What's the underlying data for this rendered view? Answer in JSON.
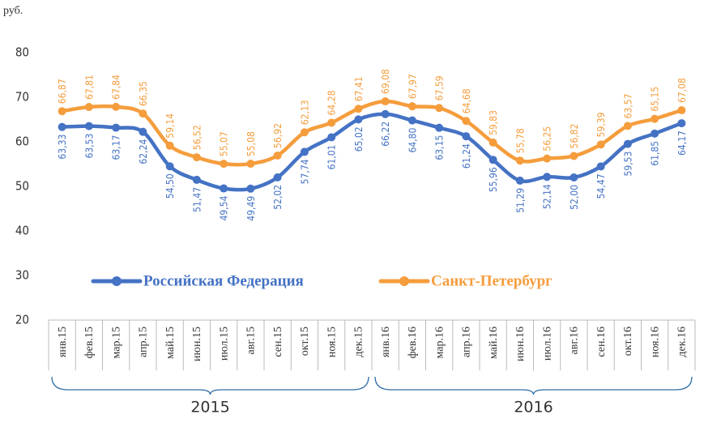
{
  "chart_data": {
    "type": "line",
    "y_unit_label": "руб.",
    "categories": [
      "янв.15",
      "фев.15",
      "мар.15",
      "апр.15",
      "май.15",
      "июн.15",
      "июл.15",
      "авг.15",
      "сен.15",
      "окт.15",
      "ноя.15",
      "дек.15",
      "янв.16",
      "фев.16",
      "мар.16",
      "апр.16",
      "май.16",
      "июн.16",
      "июл.16",
      "авг.16",
      "сен.16",
      "окт.16",
      "ноя.16",
      "дек.16"
    ],
    "year_groups": [
      "2015",
      "2016"
    ],
    "series": [
      {
        "name": "Российская Федерация",
        "color": "#4472c4",
        "values": [
          63.33,
          63.53,
          63.17,
          62.24,
          54.5,
          51.47,
          49.54,
          49.49,
          52.02,
          57.74,
          61.01,
          65.02,
          66.22,
          64.8,
          63.15,
          61.24,
          55.96,
          51.29,
          52.14,
          52.0,
          54.47,
          59.53,
          61.85,
          64.17
        ],
        "value_labels": [
          "63,33",
          "63,53",
          "63,17",
          "62,24",
          "54,50",
          "51,47",
          "49,54",
          "49,49",
          "52,02",
          "57,74",
          "61,01",
          "65,02",
          "66,22",
          "64,80",
          "63,15",
          "61,24",
          "55,96",
          "51,29",
          "52,14",
          "52,00",
          "54,47",
          "59,53",
          "61,85",
          "64,17"
        ]
      },
      {
        "name": "Санкт-Петербург",
        "color": "#f59d3d",
        "values": [
          66.87,
          67.81,
          67.84,
          66.35,
          59.14,
          56.52,
          55.07,
          55.08,
          56.92,
          62.13,
          64.28,
          67.41,
          69.08,
          67.97,
          67.59,
          64.68,
          59.83,
          55.78,
          56.25,
          56.82,
          59.39,
          63.57,
          65.15,
          67.08
        ],
        "value_labels": [
          "66,87",
          "67,81",
          "67,84",
          "66,35",
          "59,14",
          "56,52",
          "55,07",
          "55,08",
          "56,92",
          "62,13",
          "64,28",
          "67,41",
          "69,08",
          "67,97",
          "67,59",
          "64,68",
          "59,83",
          "55,78",
          "56,25",
          "56,82",
          "59,39",
          "63,57",
          "65,15",
          "67,08"
        ]
      }
    ],
    "ylim": [
      20,
      80
    ],
    "yticks": [
      20,
      30,
      40,
      50,
      60,
      70,
      80
    ],
    "grid": false
  }
}
